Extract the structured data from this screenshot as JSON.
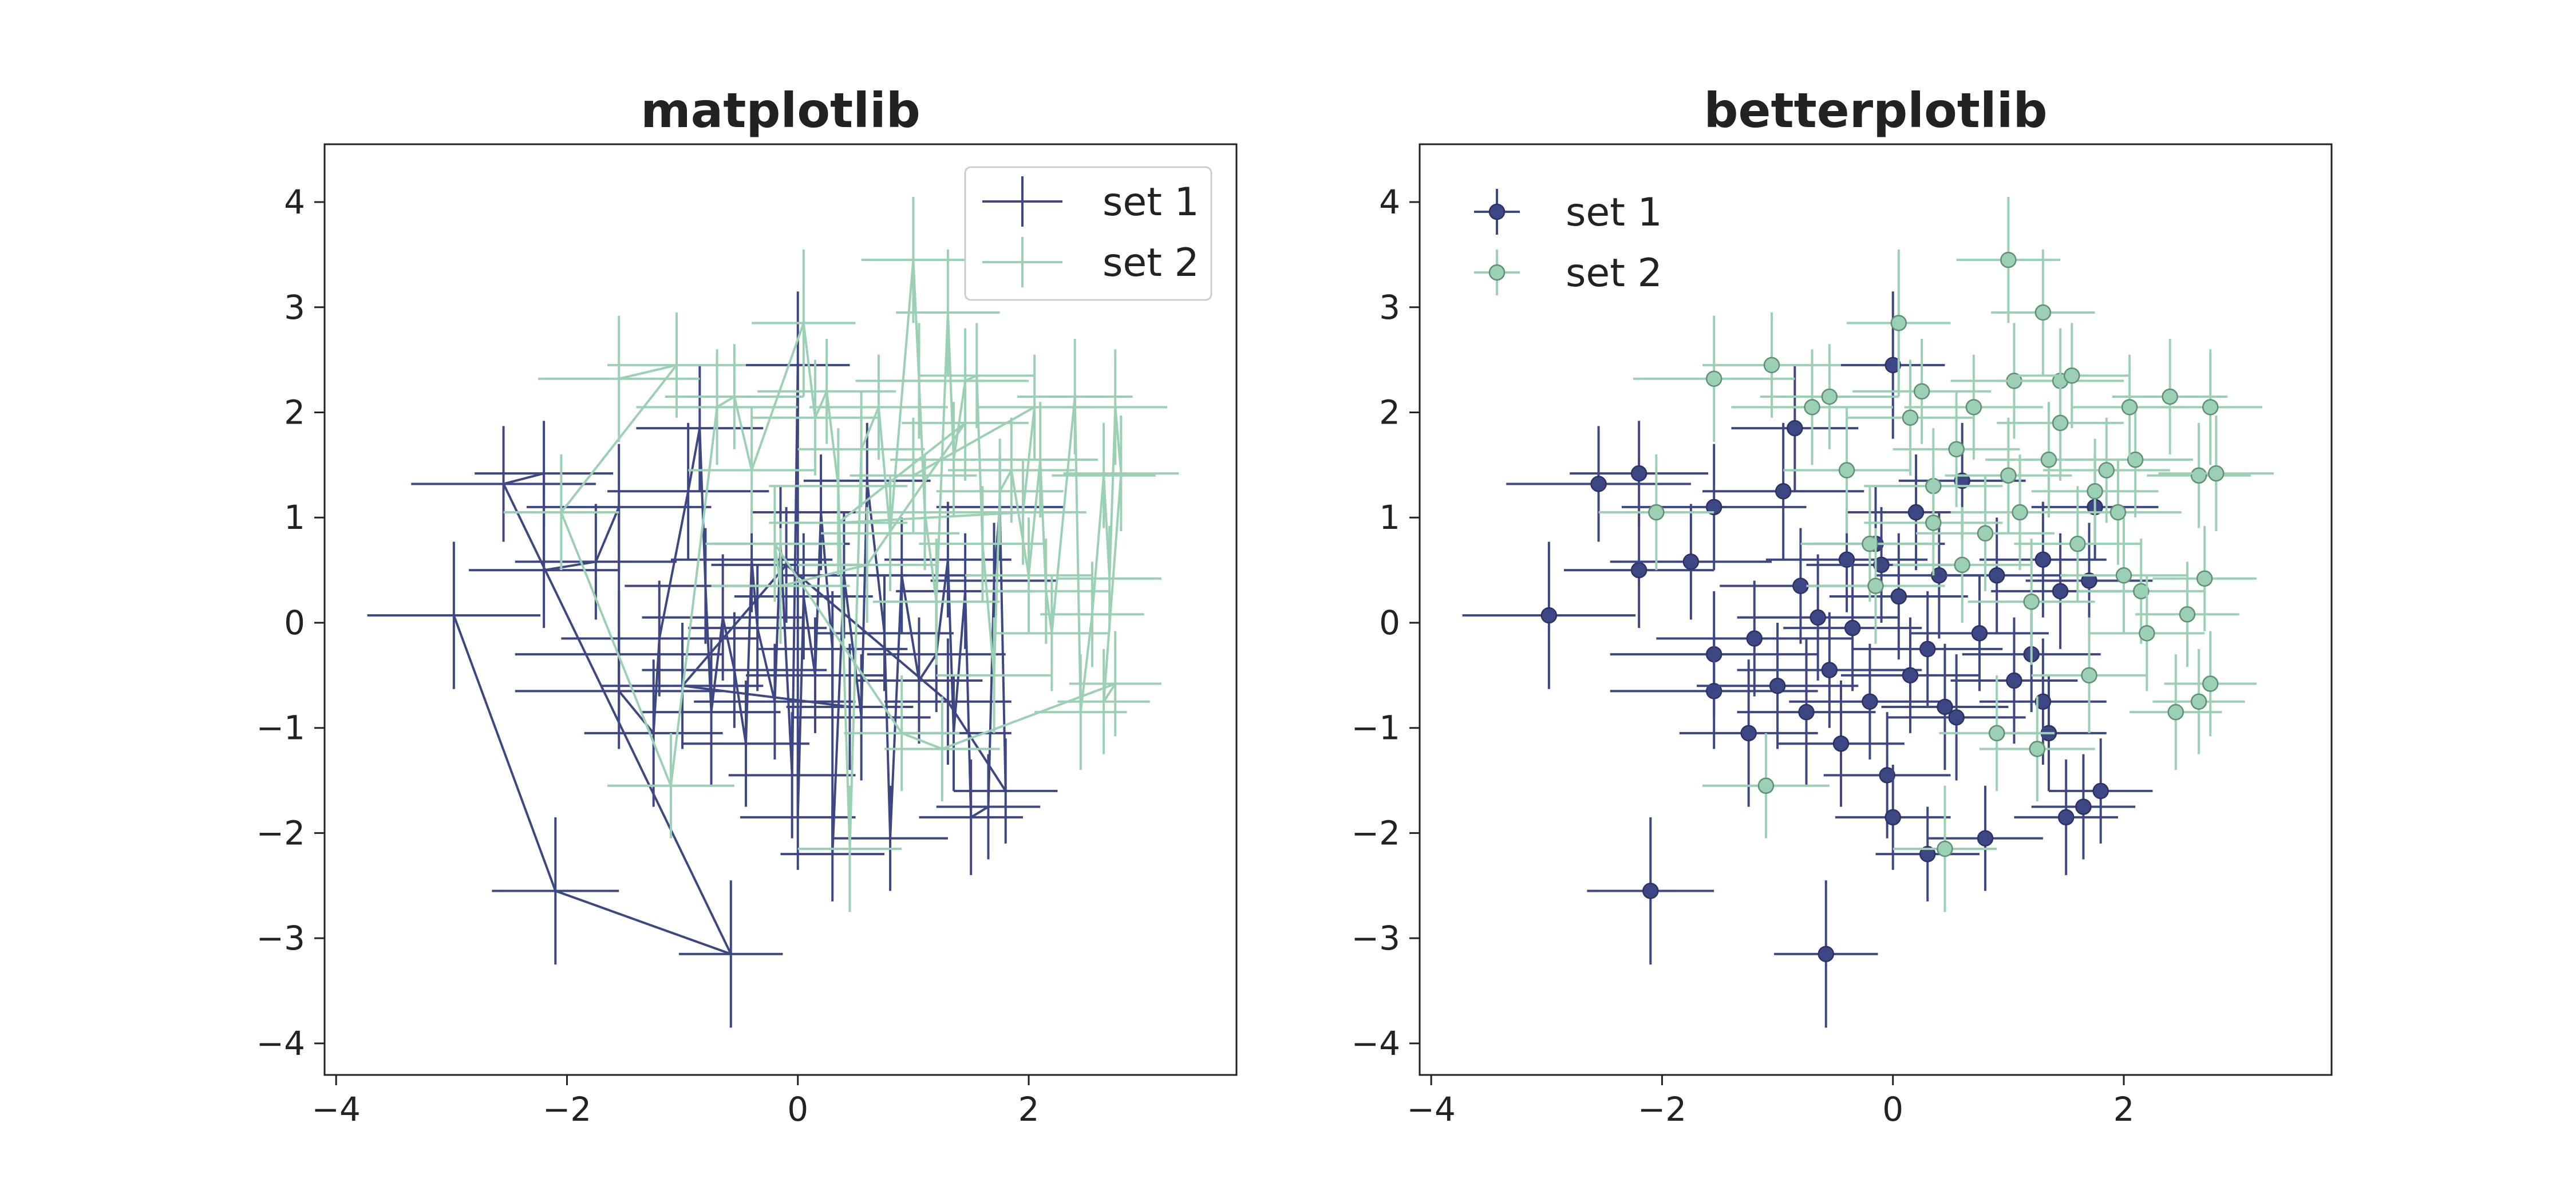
{
  "chart_data": [
    {
      "type": "scatter",
      "style": "errorbar-connected",
      "title": "matplotlib",
      "xlabel": "",
      "ylabel": "",
      "xlim": [
        -4.1,
        3.8
      ],
      "ylim": [
        -4.3,
        4.55
      ],
      "xticks": [
        -4,
        -2,
        0,
        2
      ],
      "yticks": [
        -4,
        -3,
        -2,
        -1,
        0,
        1,
        2,
        3,
        4
      ],
      "xtick_labels": [
        "−4",
        "−2",
        "0",
        "2"
      ],
      "ytick_labels": [
        "−4",
        "−3",
        "−2",
        "−1",
        "0",
        "1",
        "2",
        "3",
        "4"
      ],
      "grid": false,
      "legend_position": "top-right",
      "legend_frame": true,
      "series": [
        {
          "name": "set 1",
          "color": "#3d4783",
          "points": [
            [
              -2.98,
              0.07,
              0.75,
              0.7
            ],
            [
              -2.1,
              -2.55,
              0.55,
              0.7
            ],
            [
              -0.58,
              -3.15,
              0.45,
              0.7
            ],
            [
              -2.55,
              1.32,
              0.8,
              0.55
            ],
            [
              -2.2,
              1.42,
              0.6,
              0.5
            ],
            [
              -2.2,
              0.5,
              0.65,
              0.55
            ],
            [
              -1.75,
              0.58,
              0.7,
              0.55
            ],
            [
              -1.55,
              1.1,
              0.8,
              0.6
            ],
            [
              -1.55,
              -0.3,
              0.9,
              0.6
            ],
            [
              -1.55,
              -0.65,
              0.9,
              0.55
            ],
            [
              -1.25,
              -1.05,
              0.6,
              0.7
            ],
            [
              -1.2,
              -0.15,
              0.85,
              0.55
            ],
            [
              -0.95,
              1.25,
              0.7,
              0.65
            ],
            [
              -0.85,
              1.85,
              0.55,
              0.6
            ],
            [
              -0.8,
              0.35,
              0.7,
              0.55
            ],
            [
              -0.75,
              -0.85,
              0.6,
              0.7
            ],
            [
              -0.65,
              0.05,
              0.7,
              0.6
            ],
            [
              -0.55,
              -0.45,
              0.8,
              0.55
            ],
            [
              -0.45,
              -1.15,
              0.55,
              0.6
            ],
            [
              -0.4,
              0.6,
              0.7,
              0.5
            ],
            [
              -0.35,
              -0.05,
              0.6,
              0.6
            ],
            [
              -0.2,
              -0.75,
              0.7,
              0.55
            ],
            [
              -0.15,
              0.75,
              0.6,
              0.55
            ],
            [
              -0.05,
              -1.45,
              0.55,
              0.6
            ],
            [
              0.0,
              2.45,
              0.45,
              0.7
            ],
            [
              0.0,
              -1.85,
              0.5,
              0.5
            ],
            [
              0.05,
              0.25,
              0.6,
              0.6
            ],
            [
              0.15,
              -0.5,
              0.6,
              0.55
            ],
            [
              0.2,
              1.05,
              0.6,
              0.55
            ],
            [
              0.3,
              -0.25,
              0.65,
              0.55
            ],
            [
              0.3,
              -2.2,
              0.45,
              0.45
            ],
            [
              0.4,
              0.45,
              0.55,
              0.6
            ],
            [
              0.55,
              -0.9,
              0.6,
              0.6
            ],
            [
              0.6,
              1.35,
              0.55,
              0.55
            ],
            [
              0.75,
              -0.1,
              0.6,
              0.55
            ],
            [
              0.8,
              -2.05,
              0.5,
              0.5
            ],
            [
              0.9,
              0.45,
              0.6,
              0.55
            ],
            [
              1.05,
              -0.55,
              0.55,
              0.6
            ],
            [
              1.2,
              -0.3,
              0.6,
              0.55
            ],
            [
              1.3,
              0.6,
              0.55,
              0.55
            ],
            [
              1.35,
              -1.05,
              0.5,
              0.55
            ],
            [
              1.45,
              0.3,
              0.6,
              0.55
            ],
            [
              1.5,
              -1.85,
              0.45,
              0.55
            ],
            [
              1.65,
              -1.75,
              0.45,
              0.5
            ],
            [
              1.7,
              0.4,
              0.55,
              0.55
            ],
            [
              1.75,
              1.1,
              0.55,
              0.5
            ],
            [
              1.8,
              -1.6,
              0.45,
              0.5
            ],
            [
              1.3,
              -0.75,
              0.55,
              0.6
            ],
            [
              -0.1,
              0.55,
              0.65,
              0.55
            ],
            [
              -1.0,
              -0.6,
              0.7,
              0.6
            ],
            [
              0.45,
              -0.8,
              0.55,
              0.6
            ]
          ]
        },
        {
          "name": "set 2",
          "color": "#9bd0b4",
          "points": [
            [
              -1.55,
              2.32,
              0.7,
              0.6
            ],
            [
              -1.05,
              2.45,
              0.6,
              0.5
            ],
            [
              -2.05,
              1.05,
              0.5,
              0.55
            ],
            [
              -1.1,
              -1.55,
              0.55,
              0.5
            ],
            [
              -0.7,
              2.05,
              0.7,
              0.55
            ],
            [
              -0.55,
              2.15,
              0.6,
              0.5
            ],
            [
              -0.4,
              1.45,
              0.55,
              0.6
            ],
            [
              0.05,
              2.85,
              0.45,
              0.7
            ],
            [
              0.15,
              1.95,
              0.55,
              0.55
            ],
            [
              0.25,
              2.2,
              0.6,
              0.5
            ],
            [
              0.35,
              1.3,
              0.6,
              0.55
            ],
            [
              0.45,
              -2.15,
              0.45,
              0.6
            ],
            [
              0.55,
              1.65,
              0.55,
              0.55
            ],
            [
              0.7,
              2.05,
              0.6,
              0.5
            ],
            [
              0.8,
              0.85,
              0.6,
              0.55
            ],
            [
              1.0,
              3.45,
              0.45,
              0.6
            ],
            [
              1.05,
              2.3,
              0.55,
              0.55
            ],
            [
              1.1,
              1.05,
              0.6,
              0.55
            ],
            [
              1.2,
              0.2,
              0.55,
              0.6
            ],
            [
              1.3,
              2.95,
              0.45,
              0.6
            ],
            [
              1.35,
              1.55,
              0.55,
              0.55
            ],
            [
              1.45,
              2.3,
              0.55,
              0.5
            ],
            [
              1.55,
              2.35,
              0.5,
              0.5
            ],
            [
              1.6,
              0.75,
              0.55,
              0.55
            ],
            [
              1.7,
              -0.5,
              0.5,
              0.55
            ],
            [
              1.75,
              1.25,
              0.55,
              0.5
            ],
            [
              1.85,
              1.45,
              0.55,
              0.5
            ],
            [
              2.0,
              0.45,
              0.55,
              0.55
            ],
            [
              2.1,
              1.55,
              0.5,
              0.55
            ],
            [
              2.15,
              0.3,
              0.55,
              0.5
            ],
            [
              2.2,
              -0.1,
              0.5,
              0.55
            ],
            [
              2.4,
              2.15,
              0.5,
              0.55
            ],
            [
              2.45,
              -0.85,
              0.4,
              0.55
            ],
            [
              2.55,
              0.08,
              0.45,
              0.5
            ],
            [
              2.65,
              1.4,
              0.45,
              0.5
            ],
            [
              2.7,
              0.42,
              0.45,
              0.5
            ],
            [
              2.75,
              2.05,
              0.45,
              0.55
            ],
            [
              2.8,
              1.42,
              0.5,
              0.55
            ],
            [
              2.65,
              -0.75,
              0.4,
              0.5
            ],
            [
              2.75,
              -0.58,
              0.4,
              0.5
            ],
            [
              1.25,
              -1.2,
              0.5,
              0.5
            ],
            [
              0.9,
              -1.05,
              0.5,
              0.55
            ],
            [
              -0.2,
              0.75,
              0.6,
              0.55
            ],
            [
              -0.15,
              0.35,
              0.6,
              0.55
            ],
            [
              0.6,
              0.55,
              0.6,
              0.55
            ],
            [
              1.45,
              1.9,
              0.55,
              0.55
            ],
            [
              0.35,
              0.95,
              0.6,
              0.5
            ],
            [
              1.95,
              1.05,
              0.55,
              0.5
            ],
            [
              2.05,
              2.05,
              0.5,
              0.5
            ],
            [
              1.0,
              1.4,
              0.55,
              0.55
            ]
          ]
        }
      ]
    },
    {
      "type": "scatter",
      "style": "errorbar-markers",
      "title": "betterplotlib",
      "xlabel": "",
      "ylabel": "",
      "xlim": [
        -4.1,
        3.8
      ],
      "ylim": [
        -4.3,
        4.55
      ],
      "xticks": [
        -4,
        -2,
        0,
        2
      ],
      "yticks": [
        -4,
        -3,
        -2,
        -1,
        0,
        1,
        2,
        3,
        4
      ],
      "xtick_labels": [
        "−4",
        "−2",
        "0",
        "2"
      ],
      "ytick_labels": [
        "−4",
        "−3",
        "−2",
        "−1",
        "0",
        "1",
        "2",
        "3",
        "4"
      ],
      "grid": false,
      "legend_position": "top-left",
      "legend_frame": false,
      "series_ref": "same data as first chart"
    }
  ]
}
